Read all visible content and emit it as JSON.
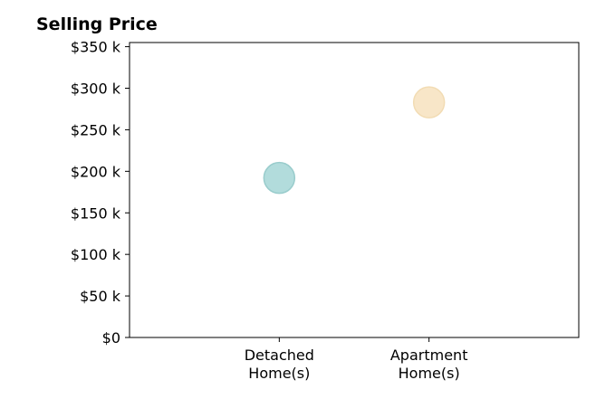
{
  "chart_data": {
    "type": "scatter",
    "title": "Selling Price",
    "xlabel": "",
    "ylabel": "",
    "categories": [
      [
        "Detached",
        "Home(s)"
      ],
      [
        "Apartment",
        "Home(s)"
      ]
    ],
    "values": [
      192000,
      283000
    ],
    "point_colors": [
      "#b2dcdc",
      "#f8e6c8"
    ],
    "point_edge_colors": [
      "#99cccc",
      "#f2dcb4"
    ],
    "ylim": [
      0,
      355000
    ],
    "y_ticks": [
      0,
      50000,
      100000,
      150000,
      200000,
      250000,
      300000,
      350000
    ],
    "y_tick_labels": [
      "$0",
      "$50 k",
      "$100 k",
      "$150 k",
      "$200 k",
      "$250 k",
      "$300 k",
      "$350 k"
    ],
    "grid": false,
    "legend": "none"
  }
}
